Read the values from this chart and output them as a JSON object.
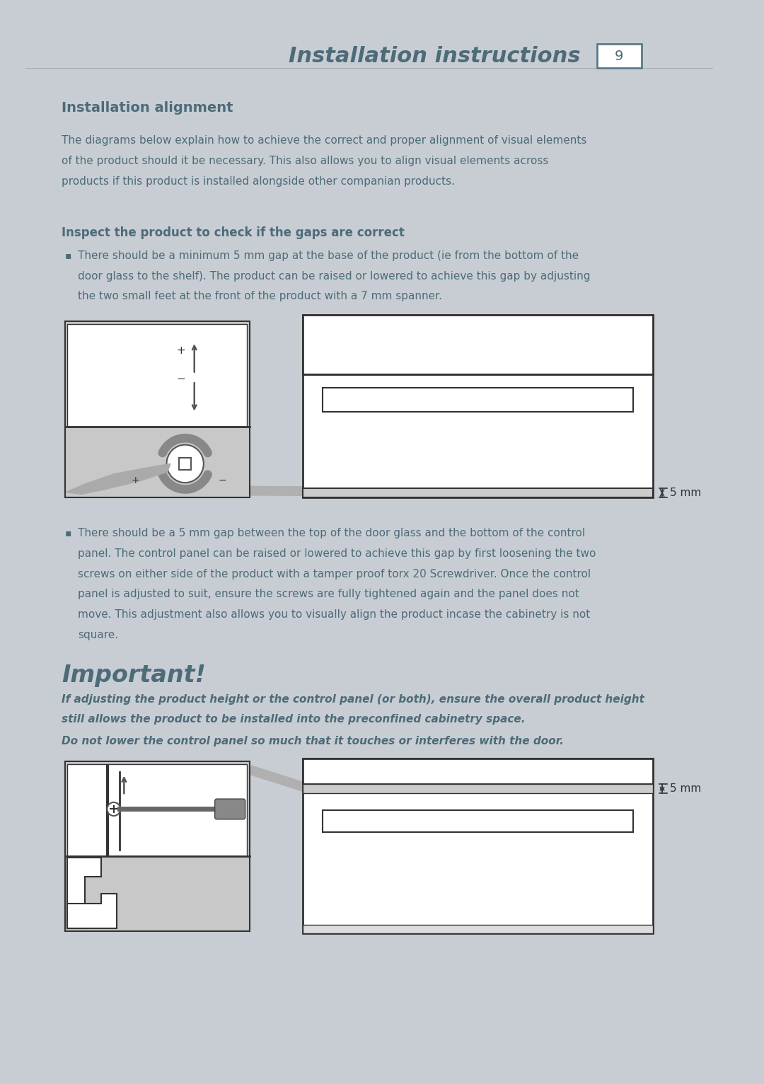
{
  "page_bg": "#c8cdd4",
  "content_bg": "#ffffff",
  "header_title": "Installation instructions",
  "header_page_num": "9",
  "text_color": "#4d6b78",
  "section_title": "Installation alignment",
  "body_text1_line1": "The diagrams below explain how to achieve the correct and proper alignment of visual elements",
  "body_text1_line2": "of the product should it be necessary. This also allows you to align visual elements across",
  "body_text1_line3": "products if this product is installed alongside other companian products.",
  "subsection_title": "Inspect the product to check if the gaps are correct",
  "bullet1_line1": "There should be a minimum 5 mm gap at the base of the product (ie from the bottom of the",
  "bullet1_line2": "door glass to the shelf). The product can be raised or lowered to achieve this gap by adjusting",
  "bullet1_line3": "the two small feet at the front of the product with a 7 mm spanner.",
  "bullet2_line1": "There should be a 5 mm gap between the top of the door glass and the bottom of the control",
  "bullet2_line2": "panel. The control panel can be raised or lowered to achieve this gap by first loosening the two",
  "bullet2_line3": "screws on either side of the product with a tamper proof torx 20 Screwdriver. Once the control",
  "bullet2_line4": "panel is adjusted to suit, ensure the screws are fully tightened again and the panel does not",
  "bullet2_line5": "move. This adjustment also allows you to visually align the product incase the cabinetry is not",
  "bullet2_line6": "square.",
  "important_title": "Important!",
  "important_b1": "If adjusting the product height or the control panel (or both), ensure the overall product height",
  "important_b2": "still allows the product to be installed into the preconfined cabinetry space.",
  "important_b3": "Do not lower the control panel so much that it touches or interferes with the door.",
  "label_5mm": "5 mm",
  "diagram_color": "#333333",
  "gray_medium": "#aaaaaa",
  "gray_light": "#cccccc",
  "gray_diag_box": "#c8c8c8"
}
